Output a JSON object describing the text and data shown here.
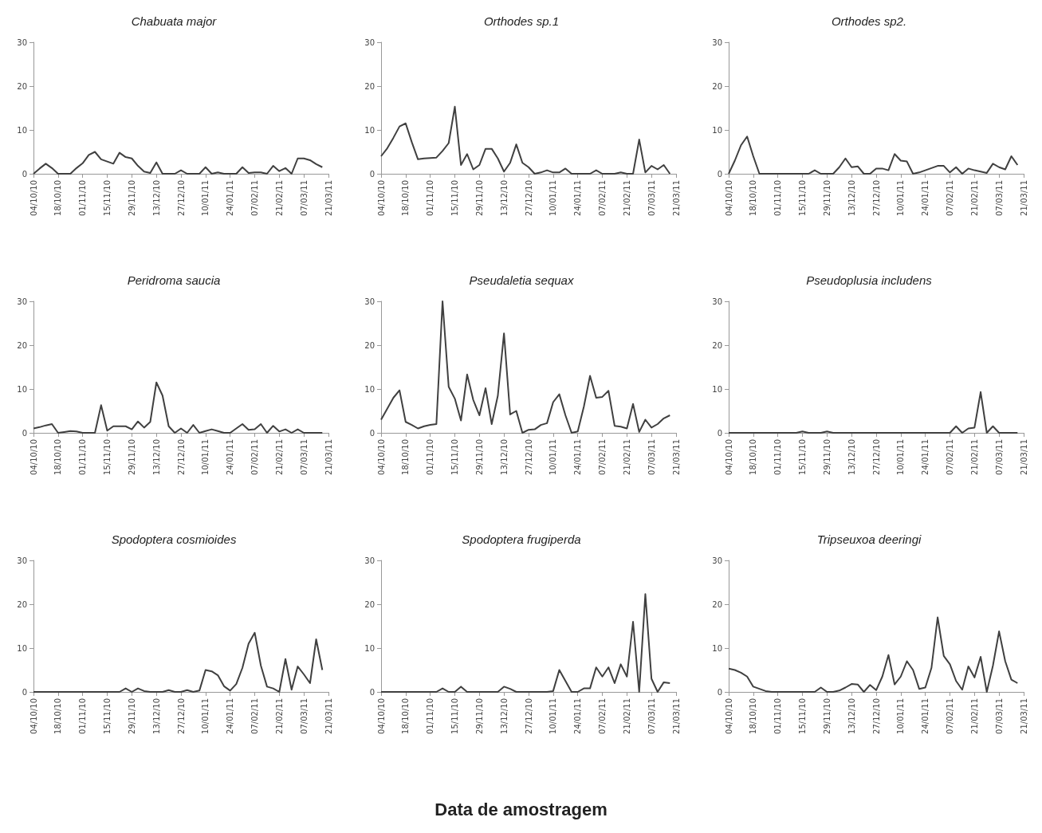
{
  "chart_data": [
    {
      "type": "line",
      "title": "Chabuata major",
      "color": "#404040",
      "grid": false,
      "ylim": [
        0,
        30
      ],
      "yticks": [
        0,
        10,
        20,
        30
      ],
      "categories": [
        "04/10/10",
        null,
        null,
        null,
        "18/10/10",
        null,
        null,
        null,
        "01/11/10",
        null,
        null,
        null,
        "15/11/10",
        null,
        null,
        null,
        "29/11/10",
        null,
        null,
        null,
        "13/12/10",
        null,
        null,
        null,
        "27/12/10",
        null,
        null,
        null,
        "10/01/11",
        null,
        null,
        null,
        "24/01/11",
        null,
        null,
        null,
        "07/02/11",
        null,
        null,
        null,
        "21/02/11",
        null,
        null,
        null,
        "07/03/11",
        null,
        null,
        null,
        "21/03/11"
      ],
      "values": [
        0,
        1.2,
        2.3,
        1.3,
        0,
        0,
        0,
        1.3,
        2.4,
        4.3,
        5,
        3.3,
        2.8,
        2.3,
        4.8,
        3.8,
        3.5,
        1.8,
        0.5,
        0.2,
        2.6,
        0,
        0,
        0,
        0.8,
        0,
        0,
        0,
        1.5,
        0,
        0.3,
        0,
        0,
        0,
        1.5,
        0.2,
        0.3,
        0.3,
        0,
        1.8,
        0.6,
        1.3,
        0,
        3.5,
        3.5,
        3.1,
        2.2,
        1.5,
        null
      ]
    },
    {
      "type": "line",
      "title": "Orthodes sp.1",
      "color": "#404040",
      "grid": false,
      "ylim": [
        0,
        30
      ],
      "yticks": [
        0,
        10,
        20,
        30
      ],
      "categories": [
        "04/10/10",
        null,
        null,
        null,
        "18/10/10",
        null,
        null,
        null,
        "01/11/10",
        null,
        null,
        null,
        "15/11/10",
        null,
        null,
        null,
        "29/11/10",
        null,
        null,
        null,
        "13/12/10",
        null,
        null,
        null,
        "27/12/10",
        null,
        null,
        null,
        "10/01/11",
        null,
        null,
        null,
        "24/01/11",
        null,
        null,
        null,
        "07/02/11",
        null,
        null,
        null,
        "21/02/11",
        null,
        null,
        null,
        "07/03/11",
        null,
        null,
        null,
        "21/03/11"
      ],
      "values": [
        4,
        5.8,
        8.2,
        10.8,
        11.5,
        7.2,
        3.3,
        3.5,
        3.6,
        3.7,
        5.2,
        7,
        15.3,
        2,
        4.5,
        1,
        2,
        5.7,
        5.7,
        3.5,
        0.5,
        2.5,
        6.7,
        2.5,
        1.5,
        0,
        0.3,
        0.8,
        0.3,
        0.3,
        1.2,
        0,
        0,
        0,
        0,
        0.8,
        0,
        0,
        0,
        0.3,
        0,
        0,
        7.8,
        0.3,
        1.8,
        1,
        2,
        0,
        null
      ]
    },
    {
      "type": "line",
      "title": "Orthodes sp2.",
      "color": "#404040",
      "grid": false,
      "ylim": [
        0,
        30
      ],
      "yticks": [
        0,
        10,
        20,
        30
      ],
      "categories": [
        "04/10/10",
        null,
        null,
        null,
        "18/10/10",
        null,
        null,
        null,
        "01/11/10",
        null,
        null,
        null,
        "15/11/10",
        null,
        null,
        null,
        "29/11/10",
        null,
        null,
        null,
        "13/12/10",
        null,
        null,
        null,
        "27/12/10",
        null,
        null,
        null,
        "10/01/11",
        null,
        null,
        null,
        "24/01/11",
        null,
        null,
        null,
        "07/02/11",
        null,
        null,
        null,
        "21/02/11",
        null,
        null,
        null,
        "07/03/11",
        null,
        null,
        null,
        "21/03/11"
      ],
      "values": [
        0,
        3,
        6.5,
        8.5,
        4,
        0,
        0,
        0,
        0,
        0,
        0,
        0,
        0,
        0,
        0.8,
        0,
        0,
        0,
        1.5,
        3.5,
        1.5,
        1.7,
        0,
        0,
        1.2,
        1.2,
        0.8,
        4.5,
        3,
        2.8,
        0,
        0.3,
        0.8,
        1.3,
        1.8,
        1.8,
        0.3,
        1.5,
        0,
        1.2,
        0.8,
        0.5,
        0.2,
        2.3,
        1.5,
        1,
        4,
        2,
        null
      ]
    },
    {
      "type": "line",
      "title": "Peridroma saucia",
      "color": "#404040",
      "grid": false,
      "ylim": [
        0,
        30
      ],
      "yticks": [
        0,
        10,
        20,
        30
      ],
      "categories": [
        "04/10/10",
        null,
        null,
        null,
        "18/10/10",
        null,
        null,
        null,
        "01/11/10",
        null,
        null,
        null,
        "15/11/10",
        null,
        null,
        null,
        "29/11/10",
        null,
        null,
        null,
        "13/12/10",
        null,
        null,
        null,
        "27/12/10",
        null,
        null,
        null,
        "10/01/11",
        null,
        null,
        null,
        "24/01/11",
        null,
        null,
        null,
        "07/02/11",
        null,
        null,
        null,
        "21/02/11",
        null,
        null,
        null,
        "07/03/11",
        null,
        null,
        null,
        "21/03/11"
      ],
      "values": [
        1,
        1.3,
        1.7,
        2,
        0,
        0.2,
        0.4,
        0.3,
        0,
        0,
        0,
        6.3,
        0.5,
        1.5,
        1.5,
        1.5,
        0.8,
        2.6,
        1.2,
        2.5,
        11.5,
        8.5,
        1.5,
        0,
        1,
        0,
        1.8,
        0,
        0.4,
        0.8,
        0.4,
        0,
        0,
        1,
        2,
        0.7,
        0.8,
        2,
        0,
        1.6,
        0.3,
        0.8,
        0,
        0.8,
        0,
        0,
        0,
        0,
        null
      ]
    },
    {
      "type": "line",
      "title": "Pseudaletia sequax",
      "color": "#404040",
      "grid": false,
      "ylim": [
        0,
        30
      ],
      "yticks": [
        0,
        10,
        20,
        30
      ],
      "categories": [
        "04/10/10",
        null,
        null,
        null,
        "18/10/10",
        null,
        null,
        null,
        "01/11/10",
        null,
        null,
        null,
        "15/11/10",
        null,
        null,
        null,
        "29/11/10",
        null,
        null,
        null,
        "13/12/10",
        null,
        null,
        null,
        "27/12/10",
        null,
        null,
        null,
        "10/01/11",
        null,
        null,
        null,
        "24/01/11",
        null,
        null,
        null,
        "07/02/11",
        null,
        null,
        null,
        "21/02/11",
        null,
        null,
        null,
        "07/03/11",
        null,
        null,
        null,
        "21/03/11"
      ],
      "values": [
        3,
        5.5,
        8,
        9.7,
        2.5,
        1.8,
        1,
        1.5,
        1.8,
        2,
        30,
        10.5,
        7.8,
        2.8,
        13.3,
        7.5,
        4,
        10.2,
        2,
        8.5,
        22.7,
        4.2,
        5,
        0,
        0.7,
        0.8,
        1.8,
        2.2,
        7,
        8.8,
        4,
        0,
        0.3,
        6,
        13,
        8,
        8.2,
        9.6,
        1.6,
        1.4,
        1,
        6.6,
        0.2,
        3,
        1.2,
        2,
        3.3,
        4,
        null
      ]
    },
    {
      "type": "line",
      "title": "Pseudoplusia includens",
      "color": "#404040",
      "grid": false,
      "ylim": [
        0,
        30
      ],
      "yticks": [
        0,
        10,
        20,
        30
      ],
      "categories": [
        "04/10/10",
        null,
        null,
        null,
        "18/10/10",
        null,
        null,
        null,
        "01/11/10",
        null,
        null,
        null,
        "15/11/10",
        null,
        null,
        null,
        "29/11/10",
        null,
        null,
        null,
        "13/12/10",
        null,
        null,
        null,
        "27/12/10",
        null,
        null,
        null,
        "10/01/11",
        null,
        null,
        null,
        "24/01/11",
        null,
        null,
        null,
        "07/02/11",
        null,
        null,
        null,
        "21/02/11",
        null,
        null,
        null,
        "07/03/11",
        null,
        null,
        null,
        "21/03/11"
      ],
      "values": [
        0,
        0,
        0,
        0,
        0,
        0,
        0,
        0,
        0,
        0,
        0,
        0,
        0.3,
        0,
        0,
        0,
        0.3,
        0,
        0,
        0,
        0,
        0,
        0,
        0,
        0,
        0,
        0,
        0,
        0,
        0,
        0,
        0,
        0,
        0,
        0,
        0,
        0,
        1.5,
        0,
        1,
        1.2,
        9.3,
        0,
        1.5,
        0,
        0,
        0,
        0,
        null
      ]
    },
    {
      "type": "line",
      "title": "Spodoptera cosmioides",
      "color": "#404040",
      "grid": false,
      "ylim": [
        0,
        30
      ],
      "yticks": [
        0,
        10,
        20,
        30
      ],
      "categories": [
        "04/10/10",
        null,
        null,
        null,
        "18/10/10",
        null,
        null,
        null,
        "01/11/10",
        null,
        null,
        null,
        "15/11/10",
        null,
        null,
        null,
        "29/11/10",
        null,
        null,
        null,
        "13/12/10",
        null,
        null,
        null,
        "27/12/10",
        null,
        null,
        null,
        "10/01/11",
        null,
        null,
        null,
        "24/01/11",
        null,
        null,
        null,
        "07/02/11",
        null,
        null,
        null,
        "21/02/11",
        null,
        null,
        null,
        "07/03/11",
        null,
        null,
        null,
        "21/03/11"
      ],
      "values": [
        0,
        0,
        0,
        0,
        0,
        0,
        0,
        0,
        0,
        0,
        0,
        0,
        0,
        0,
        0,
        0.8,
        0,
        0.8,
        0.2,
        0,
        0,
        0,
        0.4,
        0,
        0,
        0.4,
        0,
        0.3,
        5,
        4.7,
        3.8,
        1.3,
        0.3,
        1.8,
        5.5,
        11,
        13.5,
        6,
        1.2,
        0.8,
        0,
        7.5,
        0.5,
        5.8,
        4,
        2,
        12,
        5,
        null
      ]
    },
    {
      "type": "line",
      "title": "Spodoptera frugiperda",
      "xlabel": "Data de amostragem",
      "color": "#404040",
      "grid": false,
      "ylim": [
        0,
        30
      ],
      "yticks": [
        0,
        10,
        20,
        30
      ],
      "categories": [
        "04/10/10",
        null,
        null,
        null,
        "18/10/10",
        null,
        null,
        null,
        "01/11/10",
        null,
        null,
        null,
        "15/11/10",
        null,
        null,
        null,
        "29/11/10",
        null,
        null,
        null,
        "13/12/10",
        null,
        null,
        null,
        "27/12/10",
        null,
        null,
        null,
        "10/01/11",
        null,
        null,
        null,
        "24/01/11",
        null,
        null,
        null,
        "07/02/11",
        null,
        null,
        null,
        "21/02/11",
        null,
        null,
        null,
        "07/03/11",
        null,
        null,
        null,
        "21/03/11"
      ],
      "values": [
        0,
        0,
        0,
        0,
        0,
        0,
        0,
        0,
        0,
        0,
        0.8,
        0,
        0,
        1.2,
        0,
        0,
        0,
        0,
        0,
        0,
        1.2,
        0.7,
        0,
        0,
        0,
        0,
        0,
        0,
        0.2,
        5,
        2.5,
        0,
        0,
        0.8,
        0.8,
        5.6,
        3.5,
        5.6,
        2,
        6.3,
        3.5,
        16,
        0,
        22.3,
        3,
        0,
        2.2,
        2,
        null
      ]
    },
    {
      "type": "line",
      "title": "Tripseuxoa deeringi",
      "color": "#404040",
      "grid": false,
      "ylim": [
        0,
        30
      ],
      "yticks": [
        0,
        10,
        20,
        30
      ],
      "categories": [
        "04/10/10",
        null,
        null,
        null,
        "18/10/10",
        null,
        null,
        null,
        "01/11/10",
        null,
        null,
        null,
        "15/11/10",
        null,
        null,
        null,
        "29/11/10",
        null,
        null,
        null,
        "13/12/10",
        null,
        null,
        null,
        "27/12/10",
        null,
        null,
        null,
        "10/01/11",
        null,
        null,
        null,
        "24/01/11",
        null,
        null,
        null,
        "07/02/11",
        null,
        null,
        null,
        "21/02/11",
        null,
        null,
        null,
        "07/03/11",
        null,
        null,
        null,
        "21/03/11"
      ],
      "values": [
        5.3,
        5,
        4.4,
        3.5,
        1.2,
        0.7,
        0.2,
        0,
        0,
        0,
        0,
        0,
        0,
        0,
        0,
        1,
        0,
        0,
        0.3,
        1,
        1.8,
        1.7,
        0,
        1.6,
        0.4,
        3.5,
        8.4,
        1.7,
        3.5,
        7,
        5,
        0.7,
        1,
        5.5,
        17,
        8.2,
        6.3,
        2.5,
        0.5,
        5.8,
        3.3,
        8,
        0,
        6,
        13.8,
        7,
        2.8,
        2,
        null
      ]
    }
  ]
}
